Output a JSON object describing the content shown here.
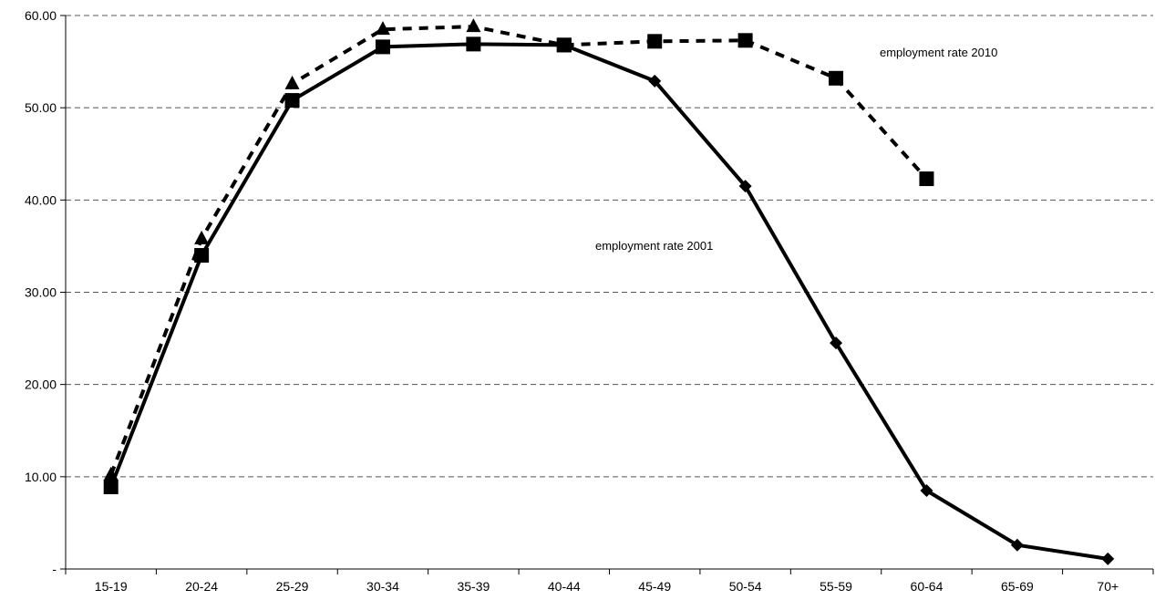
{
  "chart_data": {
    "type": "line",
    "categories": [
      "15-19",
      "20-24",
      "25-29",
      "30-34",
      "35-39",
      "40-44",
      "45-49",
      "50-54",
      "55-59",
      "60-64",
      "65-69",
      "70+"
    ],
    "ylim": [
      0,
      60
    ],
    "yticks": [
      "-",
      "10.00",
      "20.00",
      "30.00",
      "40.00",
      "50.00",
      "60.00"
    ],
    "grid": "horizontal dashed",
    "series": [
      {
        "name": "employment rate 2001",
        "style": "solid",
        "values": [
          8.9,
          34.0,
          50.8,
          56.6,
          56.9,
          56.8,
          52.9,
          41.5,
          24.5,
          8.5,
          2.6,
          1.1
        ]
      },
      {
        "name": "employment rate 2010",
        "style": "dashed",
        "values": [
          10.2,
          35.8,
          52.6,
          58.5,
          58.8,
          56.8,
          57.2,
          57.3,
          53.2,
          42.3,
          null,
          null
        ]
      }
    ],
    "annotations": [
      {
        "text": "employment rate 2010"
      },
      {
        "text": "employment rate 2001"
      }
    ]
  }
}
